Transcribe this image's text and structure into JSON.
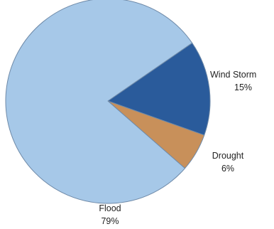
{
  "chart_data": {
    "type": "pie",
    "title": "",
    "slices": [
      {
        "label": "Wind Storm",
        "percent_label": "15%",
        "value": 15,
        "color": "#2a5b9b"
      },
      {
        "label": "Drought",
        "percent_label": "6%",
        "value": 6,
        "color": "#c8905a"
      },
      {
        "label": "Flood",
        "percent_label": "79%",
        "value": 79,
        "color": "#a6c8e8"
      }
    ],
    "edge_color": "#6f8aa8"
  }
}
